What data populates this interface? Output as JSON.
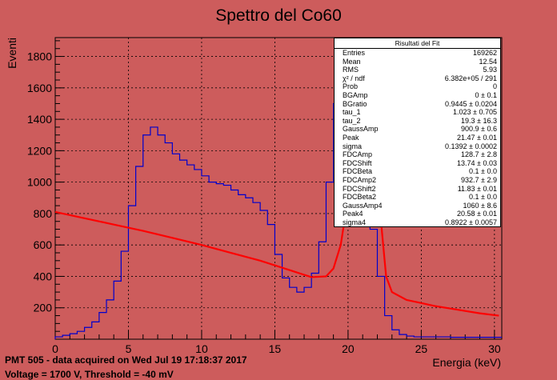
{
  "chart_data": {
    "type": "histogram",
    "title": "Spettro del Co60",
    "xlabel": "Energia (keV)",
    "ylabel": "Eventi",
    "xlim": [
      0,
      30.5
    ],
    "ylim": [
      0,
      1920
    ],
    "xticks": [
      0,
      5,
      10,
      15,
      20,
      25,
      30
    ],
    "yticks": [
      200,
      400,
      600,
      800,
      1000,
      1200,
      1400,
      1600,
      1800
    ],
    "grid": true,
    "series": [
      {
        "kind": "histogram",
        "color": "#0000cc",
        "x": [
          0,
          0.5,
          1,
          1.5,
          2,
          2.5,
          3,
          3.5,
          4,
          4.5,
          5,
          5.5,
          6,
          6.5,
          7,
          7.5,
          8,
          8.5,
          9,
          9.5,
          10,
          10.5,
          11,
          11.5,
          12,
          12.5,
          13,
          13.5,
          14,
          14.5,
          15,
          15.5,
          16,
          16.5,
          17,
          17.5,
          18,
          18.5,
          19,
          19.5,
          20,
          20.5,
          21,
          21.5,
          22,
          22.5,
          23,
          23.5,
          24,
          24.5,
          25,
          25.5,
          26,
          26.5,
          27,
          27.5,
          28,
          28.5,
          29,
          29.5,
          30,
          30.5
        ],
        "y": [
          15,
          25,
          35,
          50,
          75,
          110,
          170,
          250,
          370,
          560,
          850,
          1100,
          1300,
          1350,
          1300,
          1250,
          1180,
          1140,
          1110,
          1080,
          1040,
          1000,
          990,
          980,
          950,
          920,
          900,
          870,
          820,
          730,
          540,
          390,
          330,
          300,
          330,
          420,
          620,
          1000,
          1500,
          1800,
          1600,
          1200,
          900,
          700,
          400,
          150,
          60,
          30,
          20,
          15,
          15,
          15,
          15,
          15,
          12,
          12,
          12,
          12,
          12,
          12,
          12,
          12
        ]
      },
      {
        "kind": "fit",
        "color": "#ff0000",
        "x": [
          0,
          2,
          4,
          6,
          8,
          10,
          12,
          14,
          16,
          17.5,
          18.5,
          19,
          19.5,
          20,
          20.5,
          21,
          21.5,
          22,
          22.3,
          22.6,
          23,
          24,
          25,
          26,
          27,
          28,
          29,
          30.3
        ],
        "y": [
          810,
          770,
          730,
          690,
          645,
          600,
          550,
          500,
          440,
          395,
          400,
          450,
          600,
          900,
          1400,
          1900,
          1900,
          1300,
          700,
          400,
          300,
          250,
          230,
          210,
          195,
          180,
          165,
          150
        ]
      }
    ]
  },
  "stats_box": {
    "title": "Risultati del Fit",
    "rows": [
      {
        "label": "Entries",
        "value": "169262"
      },
      {
        "label": "Mean",
        "value": "12.54"
      },
      {
        "label": "RMS",
        "value": "5.93"
      },
      {
        "label": "χ² / ndf",
        "value": "6.382e+05 / 291"
      },
      {
        "label": "Prob",
        "value": "0"
      },
      {
        "label": "BGAmp",
        "value": "0 ± 0.1"
      },
      {
        "label": "BGratio",
        "value": "0.9445 ± 0.0204"
      },
      {
        "label": "tau_1",
        "value": "1.023 ± 0.705"
      },
      {
        "label": "tau_2",
        "value": "19.3 ± 16.3"
      },
      {
        "label": "GaussAmp",
        "value": "900.9 ± 0.6"
      },
      {
        "label": "Peak",
        "value": "21.47 ± 0.01"
      },
      {
        "label": "sigma",
        "value": "0.1392 ± 0.0002"
      },
      {
        "label": "FDCAmp",
        "value": "128.7 ± 2.8"
      },
      {
        "label": "FDCShift",
        "value": "13.74 ± 0.03"
      },
      {
        "label": "FDCBeta",
        "value": "0.1 ± 0.0"
      },
      {
        "label": "FDCAmp2",
        "value": "932.7 ± 2.9"
      },
      {
        "label": "FDCShift2",
        "value": "11.83 ± 0.01"
      },
      {
        "label": "FDCBeta2",
        "value": "0.1 ± 0.0"
      },
      {
        "label": "GaussAmp4",
        "value": "1060 ± 8.6"
      },
      {
        "label": "Peak4",
        "value": "20.58 ± 0.01"
      },
      {
        "label": "sigma4",
        "value": "0.8922 ± 0.0057"
      }
    ]
  },
  "footer": {
    "line1": "PMT 505 - data acquired on Wed Jul 19 17:18:37 2017",
    "line2": "Voltage = 1700 V, Threshold = -40 mV"
  }
}
